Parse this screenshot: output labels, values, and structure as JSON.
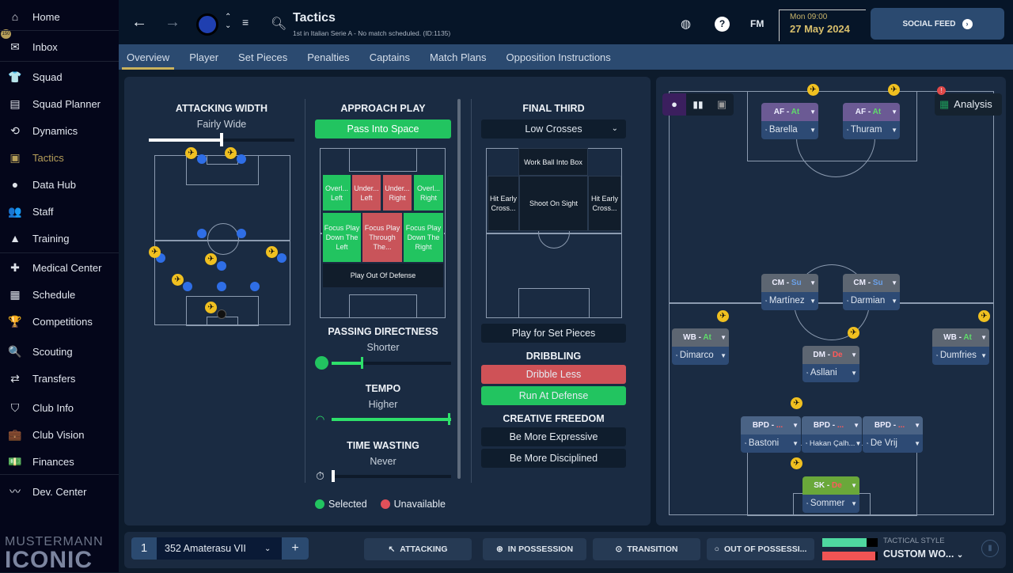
{
  "sidebar": {
    "items": [
      {
        "label": "Home",
        "icon": "home-icon",
        "glyph": "⌂"
      },
      {
        "label": "Inbox",
        "icon": "inbox-icon",
        "glyph": "✉",
        "badge": "150"
      },
      {
        "label": "Squad",
        "icon": "shirt-icon",
        "glyph": "👕"
      },
      {
        "label": "Squad Planner",
        "icon": "clipboard-icon",
        "glyph": "▤"
      },
      {
        "label": "Dynamics",
        "icon": "dynamics-icon",
        "glyph": "⟲"
      },
      {
        "label": "Tactics",
        "icon": "tactics-icon",
        "glyph": "▣",
        "active": true
      },
      {
        "label": "Data Hub",
        "icon": "data-hub-icon",
        "glyph": "●"
      },
      {
        "label": "Staff",
        "icon": "staff-icon",
        "glyph": "👥"
      },
      {
        "label": "Training",
        "icon": "training-icon",
        "glyph": "▲"
      },
      {
        "label": "Medical Center",
        "icon": "medical-icon",
        "glyph": "✚"
      },
      {
        "label": "Schedule",
        "icon": "calendar-icon",
        "glyph": "▦"
      },
      {
        "label": "Competitions",
        "icon": "trophy-icon",
        "glyph": "🏆"
      },
      {
        "label": "Scouting",
        "icon": "search-icon",
        "glyph": "🔍"
      },
      {
        "label": "Transfers",
        "icon": "transfers-icon",
        "glyph": "⇄"
      },
      {
        "label": "Club Info",
        "icon": "shield-icon",
        "glyph": "⛉"
      },
      {
        "label": "Club Vision",
        "icon": "briefcase-icon",
        "glyph": "💼"
      },
      {
        "label": "Finances",
        "icon": "finances-icon",
        "glyph": "💵"
      },
      {
        "label": "Dev. Center",
        "icon": "dev-center-icon",
        "glyph": "〰"
      }
    ],
    "logo_text_top": "MUSTERMANN",
    "logo_text_bottom": "ICONIC"
  },
  "header": {
    "title": "Tactics",
    "subtitle": "1st in Italian Serie A - No match scheduled. (ID:1135)",
    "day_time": "Mon 09:00",
    "date": "27 May 2024",
    "fm_label": "FM",
    "social_feed": "SOCIAL FEED"
  },
  "tabs": [
    "Overview",
    "Player",
    "Set Pieces",
    "Penalties",
    "Captains",
    "Match Plans",
    "Opposition Instructions"
  ],
  "attacking_width": {
    "title": "ATTACKING WIDTH",
    "value": "Fairly Wide",
    "level": 0.5
  },
  "approach": {
    "title": "APPROACH PLAY",
    "selected": "Pass Into Space",
    "zones": [
      "Overl... Left",
      "Under... Left",
      "Under... Right",
      "Overl... Right",
      "Focus Play Down The Left",
      "Focus Play Through The...",
      "Focus Play Down The Right",
      "Play Out Of Defense"
    ]
  },
  "passing": {
    "title": "PASSING DIRECTNESS",
    "value": "Shorter",
    "level": 0.3
  },
  "tempo": {
    "title": "TEMPO",
    "value": "Higher",
    "level": 1.0
  },
  "time_wasting": {
    "title": "TIME WASTING",
    "value": "Never",
    "level": 0.0
  },
  "legend": {
    "selected": "Selected",
    "unavailable": "Unavailable",
    "selected_color": "#22c460",
    "unavailable_color": "#e0505a"
  },
  "final_third": {
    "title": "FINAL THIRD",
    "dropdown": "Low Crosses",
    "zones": [
      "Work Ball Into Box",
      "Hit Early Cross...",
      "Shoot On Sight",
      "Hit Early Cross..."
    ],
    "set_pieces": "Play for Set Pieces"
  },
  "dribbling": {
    "title": "DRIBBLING",
    "options": [
      "Dribble Less",
      "Run At Defense"
    ]
  },
  "creative": {
    "title": "CREATIVE FREEDOM",
    "options": [
      "Be More Expressive",
      "Be More Disciplined"
    ]
  },
  "analysis": "Analysis",
  "players": [
    {
      "role": "AF",
      "duty": "At",
      "name": "Barella",
      "type": "att"
    },
    {
      "role": "AF",
      "duty": "At",
      "name": "Thuram",
      "type": "att"
    },
    {
      "role": "CM",
      "duty": "Su",
      "name": "Martínez",
      "type": "mid"
    },
    {
      "role": "CM",
      "duty": "Su",
      "name": "Darmian",
      "type": "mid"
    },
    {
      "role": "WB",
      "duty": "At",
      "name": "Dimarco",
      "type": "mid"
    },
    {
      "role": "WB",
      "duty": "At",
      "name": "Dumfries",
      "type": "mid"
    },
    {
      "role": "DM",
      "duty": "De",
      "name": "Asllani",
      "type": "mid"
    },
    {
      "role": "BPD",
      "duty": "...",
      "name": "Bastoni",
      "type": "def"
    },
    {
      "role": "BPD",
      "duty": "...",
      "name": "Hakan Çalh...",
      "type": "def"
    },
    {
      "role": "BPD",
      "duty": "...",
      "name": "De Vrij",
      "type": "def"
    },
    {
      "role": "SK",
      "duty": "De",
      "name": "Sommer",
      "type": "gk"
    }
  ],
  "duty_colors": {
    "At": "#5fdc6a",
    "Su": "#6aa0e8",
    "De": "#ff5a5a",
    "...": "#ff5a5a"
  },
  "bottom": {
    "tactic_slot": "1",
    "tactic_name": "352 Amaterasu VII",
    "add": "+",
    "buttons": [
      "ATTACKING",
      "IN POSSESSION",
      "TRANSITION",
      "OUT OF POSSESSI..."
    ],
    "style_label": "TACTICAL STYLE",
    "style_value": "CUSTOM WO..."
  }
}
